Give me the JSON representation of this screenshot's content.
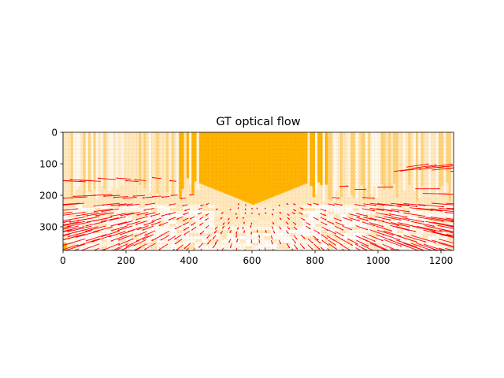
{
  "chart_data": {
    "type": "heatmap",
    "title": "GT optical flow",
    "xlabel": "",
    "ylabel": "",
    "xlim": [
      0,
      1240
    ],
    "ylim": [
      375,
      0
    ],
    "xticks": [
      0,
      200,
      400,
      600,
      800,
      1000,
      1200
    ],
    "yticks": [
      0,
      100,
      200,
      300
    ],
    "grid": false,
    "background_colormap": "white-to-orange (flow magnitude, fine grid of small dots)",
    "overlay": "quiver of red flow arrows radiating outward from focus of expansion",
    "focus_of_expansion": [
      600,
      180
    ],
    "colors": {
      "arrow": "#ff0000",
      "dark_orange": "#ffb300",
      "mid_orange": "#ffd27a",
      "light_orange": "#ffe7bb",
      "pale": "#fff6e8",
      "dot": "#5a4a3a"
    }
  }
}
